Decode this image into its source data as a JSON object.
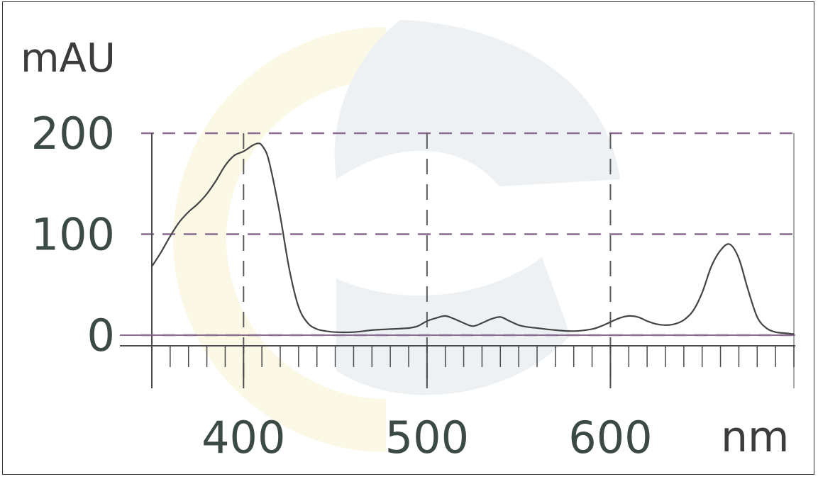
{
  "chart_data": {
    "type": "line",
    "xlabel": "nm",
    "ylabel": "mAU",
    "xlim": [
      350,
      700
    ],
    "ylim": [
      -5,
      200
    ],
    "x_ticks": [
      400,
      500,
      600
    ],
    "y_ticks": [
      0,
      100,
      200
    ],
    "grid": {
      "horizontal_dashed_at": [
        0,
        100,
        200
      ],
      "vertical_dashed_at": [
        400,
        500,
        600
      ]
    },
    "series": [
      {
        "color": "#444444",
        "x": [
          350,
          355,
          360,
          365,
          370,
          375,
          380,
          385,
          390,
          395,
          400,
          405,
          408,
          410,
          413,
          416,
          420,
          425,
          430,
          435,
          440,
          445,
          450,
          460,
          470,
          480,
          490,
          495,
          500,
          505,
          510,
          515,
          520,
          525,
          530,
          535,
          540,
          545,
          550,
          555,
          560,
          570,
          580,
          590,
          595,
          600,
          605,
          610,
          615,
          620,
          625,
          630,
          635,
          640,
          645,
          650,
          655,
          660,
          665,
          670,
          675,
          680,
          685,
          690,
          695,
          700
        ],
        "y": [
          68,
          82,
          98,
          112,
          122,
          130,
          140,
          153,
          168,
          178,
          182,
          188,
          190,
          188,
          178,
          155,
          118,
          65,
          28,
          12,
          6,
          4,
          3,
          3,
          5,
          6,
          7,
          9,
          14,
          17,
          19,
          16,
          12,
          9,
          12,
          16,
          18,
          14,
          10,
          8,
          7,
          5,
          4,
          6,
          9,
          13,
          17,
          19,
          18,
          14,
          11,
          10,
          11,
          15,
          24,
          42,
          68,
          84,
          90,
          76,
          45,
          18,
          7,
          3,
          2,
          1
        ]
      }
    ]
  },
  "colors": {
    "axis": "#4a4a4a",
    "grid_dash": "#8a6c90",
    "tick_label": "#3c4a44",
    "watermark_blue": "#eef1f4",
    "watermark_yellow": "#fbf8e6"
  }
}
